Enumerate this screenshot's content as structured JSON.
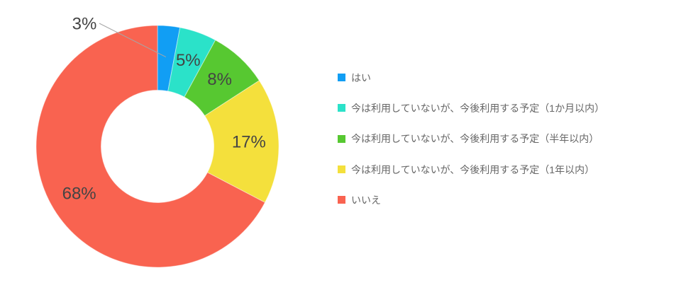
{
  "chart_data": {
    "type": "pie",
    "subtype": "donut",
    "title": "",
    "direction": "clockwise",
    "start_angle_deg": 0,
    "donut_hole_ratio": 0.465,
    "legend_position": "right",
    "grid": false,
    "categories": [
      "はい",
      "今は利用していないが、今後利用する予定（1か月以内）",
      "今は利用していないが、今後利用する予定（半年以内）",
      "今は利用していないが、今後利用する予定（1年以内）",
      "いいえ"
    ],
    "values": [
      3,
      5,
      8,
      17,
      68
    ],
    "slices": [
      {
        "label": "はい",
        "value": 3,
        "value_label": "3%",
        "color": "#119EF4",
        "value_label_placement": "outside"
      },
      {
        "label": "今は利用していないが、今後利用する予定（1か月以内）",
        "value": 5,
        "value_label": "5%",
        "color": "#2BE2C9",
        "value_label_placement": "inside"
      },
      {
        "label": "今は利用していないが、今後利用する予定（半年以内）",
        "value": 8,
        "value_label": "8%",
        "color": "#57C831",
        "value_label_placement": "inside"
      },
      {
        "label": "今は利用していないが、今後利用する予定（1年以内）",
        "value": 17,
        "value_label": "17%",
        "color": "#F4E03C",
        "value_label_placement": "inside"
      },
      {
        "label": "いいえ",
        "value": 68,
        "value_label": "68%",
        "color": "#F96350",
        "value_label_placement": "inside"
      }
    ],
    "colors": {
      "value_label": "#444444",
      "legend_text": "#666666",
      "leader_line": "#A6A6A6",
      "slice_border": "rgba(255,255,255,0.45)",
      "background": "#FFFFFF"
    }
  }
}
